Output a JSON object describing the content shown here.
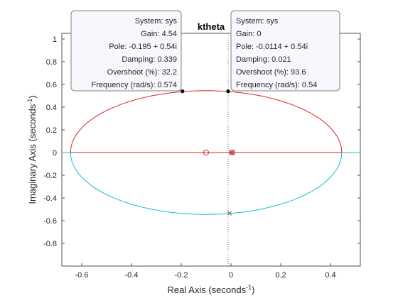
{
  "chart_data": {
    "type": "line",
    "title": "ktheta",
    "xlabel": "Real Axis (seconds",
    "xlabel_sup": "-1",
    "xlabel_end": ")",
    "ylabel": "Imaginary Axis (seconds",
    "ylabel_sup": "-1",
    "ylabel_end": ")",
    "xlim": [
      -0.68,
      0.52
    ],
    "ylim": [
      -1.0,
      1.05
    ],
    "xticks": [
      -0.6,
      -0.4,
      -0.2,
      0,
      0.2,
      0.4
    ],
    "xtick_labels": [
      "-0.6",
      "-0.4",
      "-0.2",
      "0",
      "0.2",
      "0.4"
    ],
    "yticks": [
      -0.8,
      -0.6,
      -0.4,
      -0.2,
      0,
      0.2,
      0.4,
      0.6,
      0.8,
      1
    ],
    "ytick_labels": [
      "-0.8",
      "-0.6",
      "-0.4",
      "-0.2",
      "0",
      "0.2",
      "0.4",
      "0.6",
      "0.8",
      "1"
    ],
    "grid": false,
    "branches": [
      {
        "color": "#d62728",
        "ellipse": {
          "cx": -0.1,
          "cy": 0,
          "rx": 0.545,
          "ry": 0.545,
          "half": "upper"
        }
      },
      {
        "color": "#17becf",
        "ellipse": {
          "cx": -0.1,
          "cy": 0,
          "rx": 0.545,
          "ry": 0.545,
          "half": "lower"
        }
      },
      {
        "color": "#d62728",
        "segment": [
          [
            -0.645,
            0
          ],
          [
            0.445,
            0
          ]
        ]
      },
      {
        "color": "#17becf",
        "segment": [
          [
            -0.68,
            0
          ],
          [
            -0.645,
            0
          ]
        ]
      },
      {
        "color": "#17becf",
        "segment": [
          [
            0.445,
            0
          ],
          [
            0.52,
            0
          ]
        ]
      }
    ],
    "green_segment": {
      "color": "#2ca02c",
      "points": [
        [
          -0.01,
          0
        ],
        [
          0.01,
          0
        ]
      ]
    },
    "poles": [
      {
        "x": 0.005,
        "y": 0,
        "color": "#d62728"
      },
      {
        "x": 0,
        "y": 0,
        "color": "#8c564b"
      },
      {
        "x": -0.005,
        "y": -0.535,
        "color": "#8c564b"
      }
    ],
    "zeros": [
      {
        "x": -0.1,
        "y": 0,
        "color": "#d62728"
      },
      {
        "x": 0.005,
        "y": 0,
        "color": "#d62728"
      }
    ],
    "reference_line": {
      "x": -0.0114,
      "style": "dotted"
    },
    "datatips": [
      {
        "point": {
          "x": -0.195,
          "y": 0.54
        },
        "align": "right",
        "lines": [
          "System: sys",
          "Gain: 4.54",
          "Pole: -0.195 + 0.54i",
          "Damping: 0.339",
          "Overshoot (%): 32.2",
          "Frequency (rad/s): 0.574"
        ]
      },
      {
        "point": {
          "x": -0.0114,
          "y": 0.54
        },
        "align": "left",
        "lines": [
          "System: sys",
          "Gain: 0",
          "Pole: -0.0114 + 0.54i",
          "Damping: 0.021",
          "Overshoot (%): 93.6",
          "Frequency (rad/s): 0.54"
        ]
      }
    ]
  },
  "colors": {
    "axes": "#262626",
    "tip_border": "#808080",
    "tip_fill": "#f7f7fd"
  }
}
